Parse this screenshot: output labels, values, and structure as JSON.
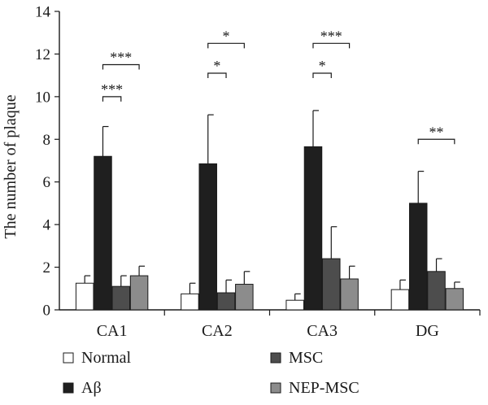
{
  "chart_data": {
    "type": "bar",
    "title": "",
    "xlabel": "",
    "ylabel": "The number of plaque",
    "ylim": [
      0,
      14
    ],
    "yticks": [
      0,
      2,
      4,
      6,
      8,
      10,
      12,
      14
    ],
    "categories": [
      "CA1",
      "CA2",
      "CA3",
      "DG"
    ],
    "grid": false,
    "legend_position": "bottom",
    "series": [
      {
        "name": "Normal",
        "color": "#ffffff",
        "values": [
          1.25,
          0.75,
          0.45,
          0.95
        ],
        "errors": [
          0.35,
          0.5,
          0.3,
          0.45
        ]
      },
      {
        "name": "Aβ",
        "color": "#1f1f1f",
        "values": [
          7.2,
          6.85,
          7.65,
          5.0
        ],
        "errors": [
          1.4,
          2.3,
          1.7,
          1.5
        ]
      },
      {
        "name": "MSC",
        "color": "#4d4d4d",
        "values": [
          1.1,
          0.8,
          2.4,
          1.8
        ],
        "errors": [
          0.5,
          0.6,
          1.5,
          0.6
        ]
      },
      {
        "name": "NEP-MSC",
        "color": "#8c8c8c",
        "values": [
          1.6,
          1.2,
          1.45,
          1.0
        ],
        "errors": [
          0.45,
          0.6,
          0.6,
          0.3
        ]
      }
    ],
    "significance": [
      {
        "category": "CA1",
        "from": 1,
        "to": 2,
        "label": "***",
        "y": 10.0
      },
      {
        "category": "CA1",
        "from": 1,
        "to": 3,
        "label": "***",
        "y": 11.5
      },
      {
        "category": "CA2",
        "from": 1,
        "to": 2,
        "label": "*",
        "y": 11.1
      },
      {
        "category": "CA2",
        "from": 1,
        "to": 3,
        "label": "*",
        "y": 12.5
      },
      {
        "category": "CA3",
        "from": 1,
        "to": 2,
        "label": "*",
        "y": 11.1
      },
      {
        "category": "CA3",
        "from": 1,
        "to": 3,
        "label": "***",
        "y": 12.5
      },
      {
        "category": "DG",
        "from": 1,
        "to": 3,
        "label": "**",
        "y": 8.0
      }
    ]
  }
}
